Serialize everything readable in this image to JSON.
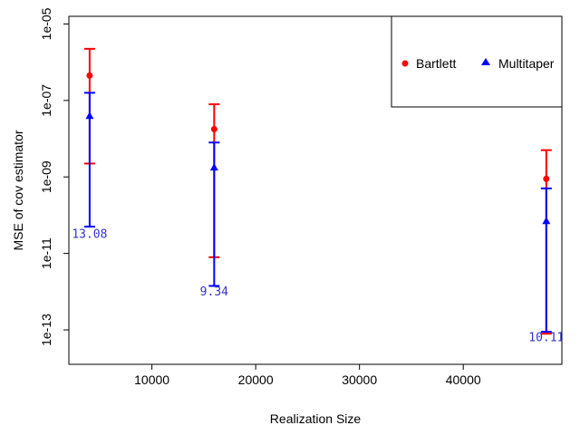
{
  "chart_data": {
    "type": "scatter",
    "title": "",
    "xlabel": "Realization Size",
    "ylabel": "MSE of cov estimator",
    "xlim": [
      2000,
      49500
    ],
    "ylog": true,
    "ylim_log10": [
      -13.9,
      -4.8
    ],
    "x_ticks": [
      10000,
      20000,
      30000,
      40000
    ],
    "x_tick_labels": [
      "10000",
      "20000",
      "30000",
      "40000"
    ],
    "y_ticks_log10": [
      -13,
      -11,
      -9,
      -7,
      -5
    ],
    "y_tick_labels": [
      "1e-13",
      "1e-11",
      "1e-09",
      "1e-07",
      "1e-05"
    ],
    "grid": false,
    "legend_position": "top-right",
    "series": [
      {
        "name": "Bartlett",
        "color": "#ff0000",
        "marker": "circle",
        "points": [
          {
            "x": 4000,
            "y_log10": -6.35,
            "lo_log10": -8.65,
            "hi_log10": -5.65
          },
          {
            "x": 16000,
            "y_log10": -7.75,
            "lo_log10": -11.1,
            "hi_log10": -7.1
          },
          {
            "x": 48000,
            "y_log10": -9.05,
            "lo_log10": -13.1,
            "hi_log10": -8.3
          }
        ]
      },
      {
        "name": "Multitaper",
        "color": "#0000ff",
        "marker": "triangle",
        "points": [
          {
            "x": 4000,
            "y_log10": -7.4,
            "lo_log10": -10.3,
            "hi_log10": -6.8
          },
          {
            "x": 16000,
            "y_log10": -8.75,
            "lo_log10": -11.85,
            "hi_log10": -8.1
          },
          {
            "x": 48000,
            "y_log10": -10.15,
            "lo_log10": -13.05,
            "hi_log10": -9.3
          }
        ]
      }
    ],
    "annotations": [
      {
        "text": "13.08",
        "x": 4000,
        "y_log10": -10.6,
        "color": "#3333cc"
      },
      {
        "text": "9.34",
        "x": 16000,
        "y_log10": -12.1,
        "color": "#3333cc"
      },
      {
        "text": "10.11",
        "x": 48000,
        "y_log10": -13.3,
        "color": "#3333cc"
      }
    ]
  }
}
